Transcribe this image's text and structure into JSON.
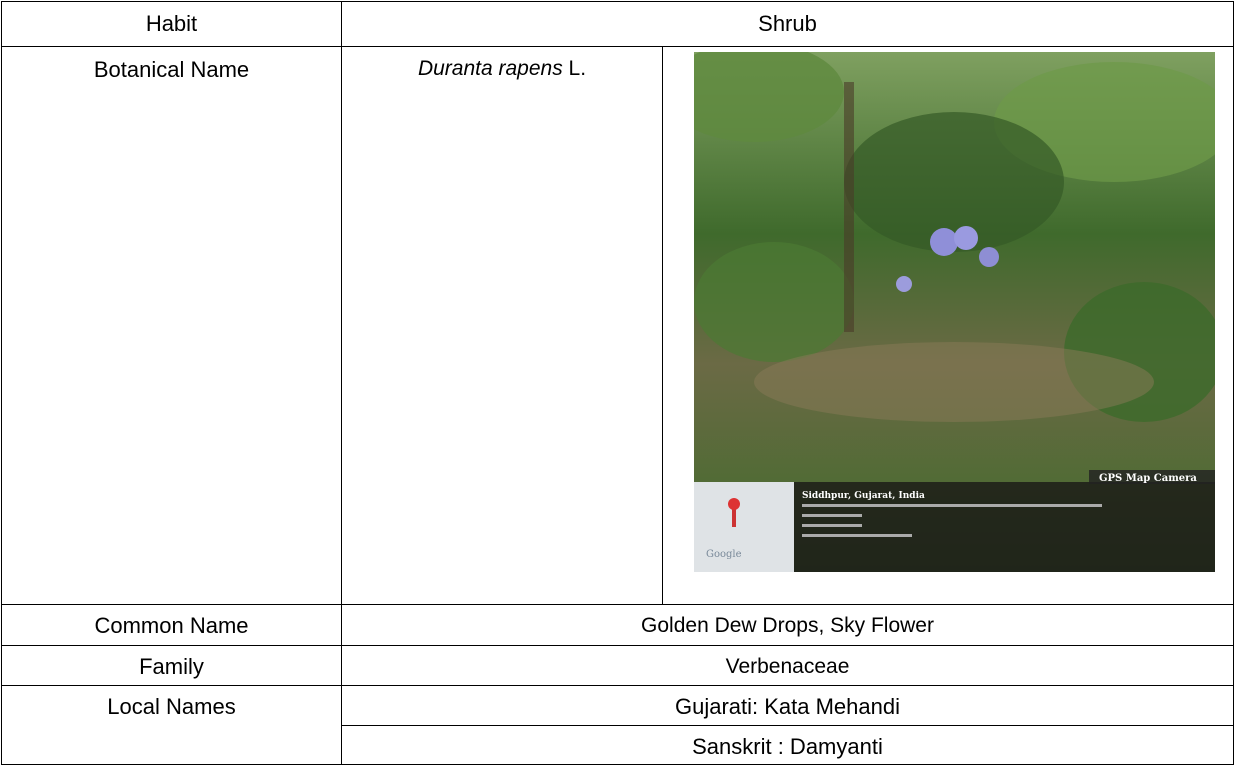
{
  "table": {
    "habit": {
      "label": "Habit",
      "value": "Shrub"
    },
    "botanical_name": {
      "label": "Botanical Name",
      "species": "Duranta rapens",
      "author": "L."
    },
    "photo": {
      "stamp": "GPS Map Camera",
      "location": "Siddhpur, Gujarat, India",
      "map_logo": "Google"
    },
    "common_name": {
      "label": "Common Name",
      "value": "Golden Dew Drops, Sky Flower"
    },
    "family": {
      "label": "Family",
      "value": "Verbenaceae"
    },
    "local_names": {
      "label": "Local Names",
      "values": [
        "Gujarati: Kata Mehandi",
        "Sanskrit : Damyanti"
      ]
    }
  }
}
